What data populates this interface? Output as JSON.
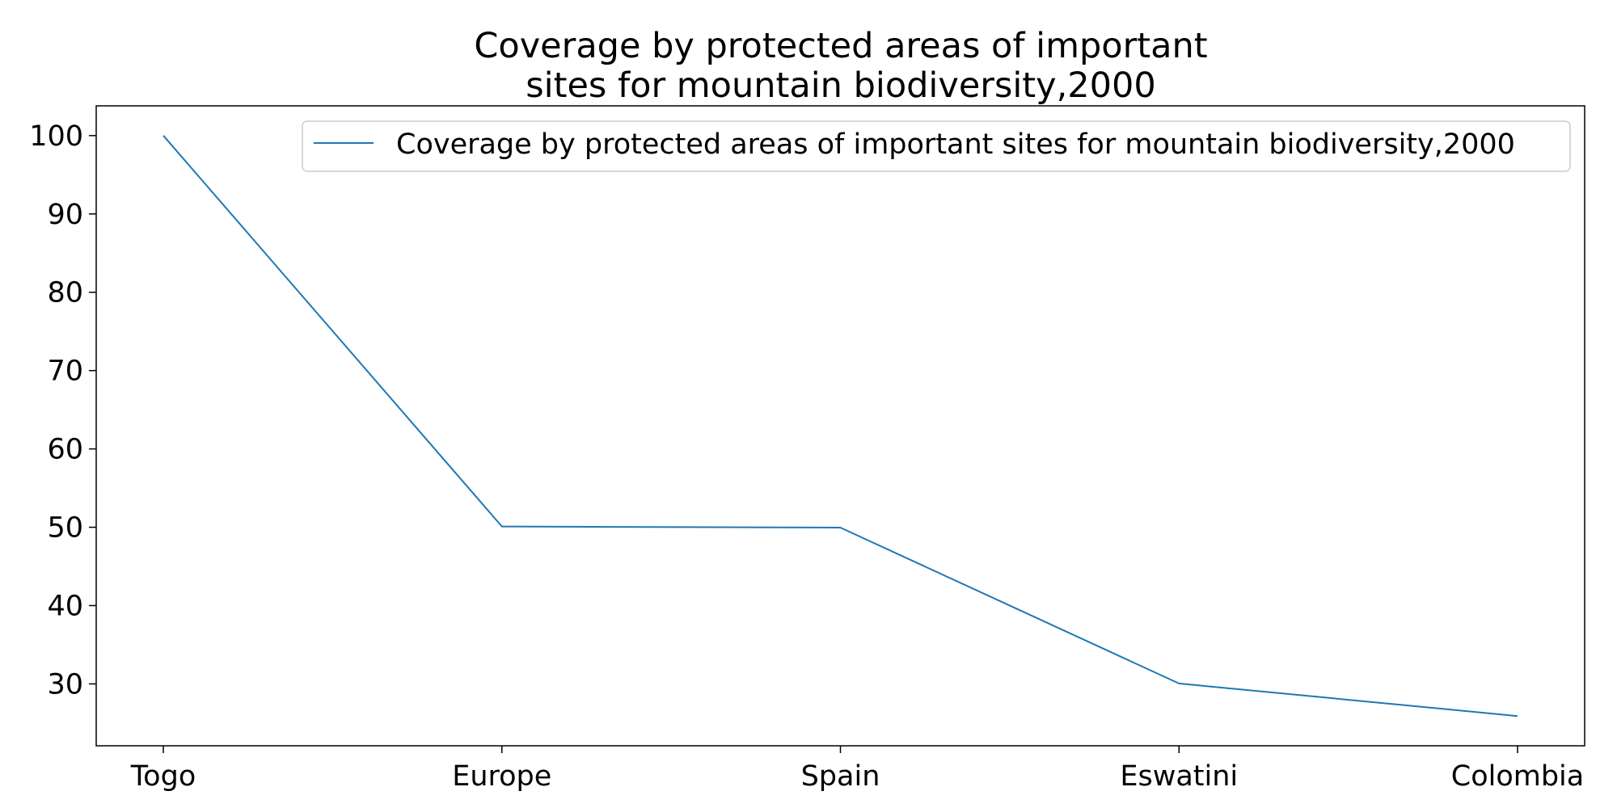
{
  "chart_data": {
    "type": "line",
    "title_lines": [
      "Coverage by protected areas of important",
      "sites for mountain biodiversity,2000"
    ],
    "categories": [
      "Togo",
      "Europe",
      "Spain",
      "Eswatini",
      "Colombia"
    ],
    "series": [
      {
        "name": "Coverage by protected areas of important sites for mountain biodiversity,2000",
        "values": [
          100.0,
          50.1,
          49.95,
          30.05,
          25.9
        ],
        "color": "#1f77b4"
      }
    ],
    "yticks": [
      30,
      40,
      50,
      60,
      70,
      80,
      90,
      100
    ],
    "ylim": [
      22.1,
      103.8
    ],
    "xlabel": "",
    "ylabel": "",
    "grid": false,
    "legend_position": "top-right"
  }
}
